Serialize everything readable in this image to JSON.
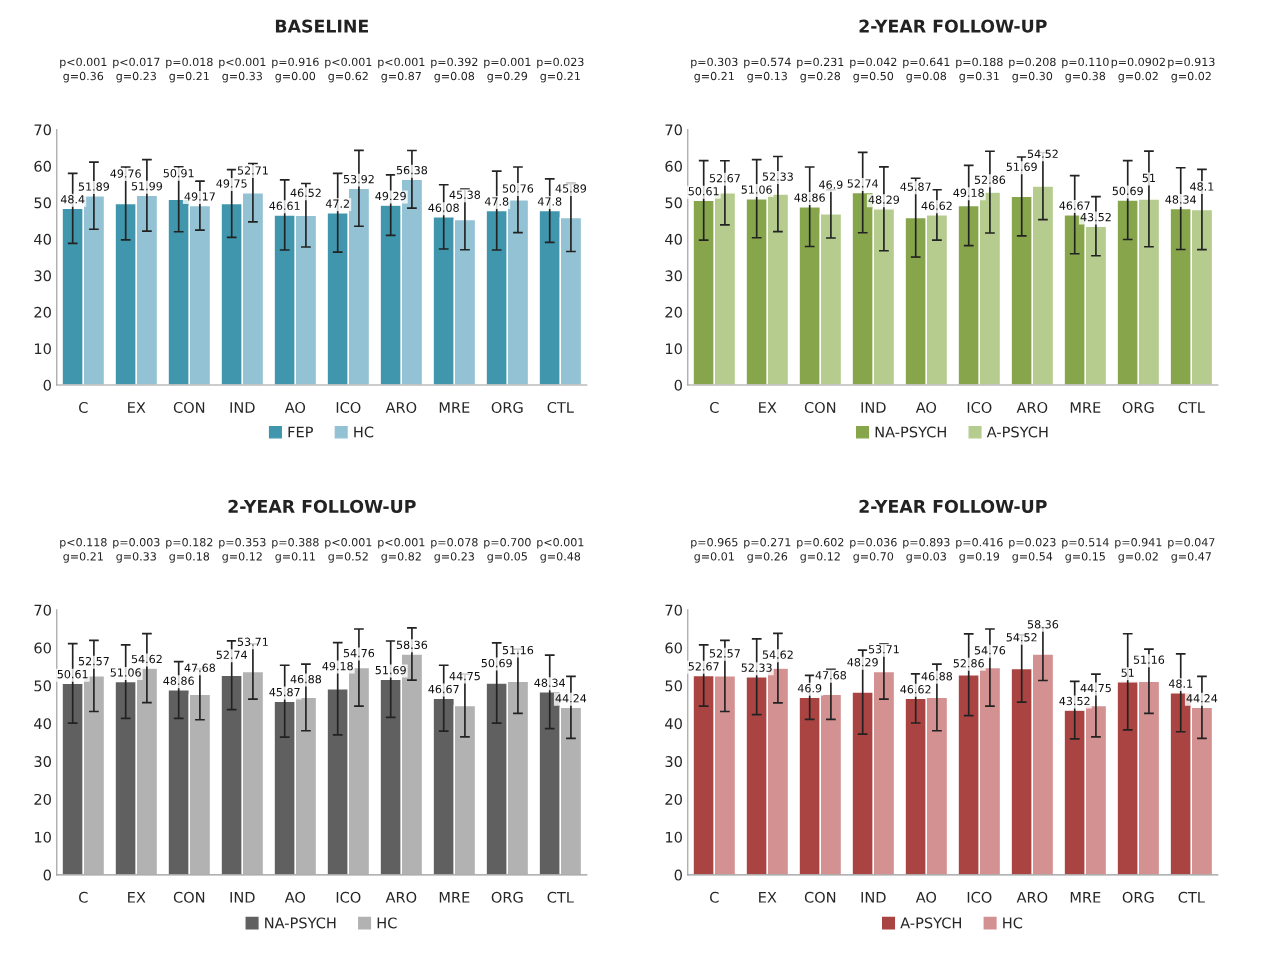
{
  "chart_data": [
    {
      "type": "bar",
      "title": "BASELINE",
      "categories": [
        "C",
        "EX",
        "CON",
        "IND",
        "AO",
        "ICO",
        "ARO",
        "MRE",
        "ORG",
        "CTL"
      ],
      "ylim": [
        0,
        70
      ],
      "yticks": [
        0,
        10,
        20,
        30,
        40,
        50,
        60,
        70
      ],
      "grid": false,
      "legend": "bottom",
      "data_labels": true,
      "series": [
        {
          "name": "FEP",
          "color": "#3f96ad",
          "values": [
            48.4,
            49.76,
            50.91,
            49.75,
            46.61,
            47.2,
            49.29,
            46.08,
            47.8,
            47.8
          ],
          "errors": [
            9.6,
            10.0,
            8.9,
            9.3,
            9.6,
            10.8,
            8.3,
            8.8,
            10.8,
            8.7
          ]
        },
        {
          "name": "HC",
          "color": "#93c2d4",
          "values": [
            51.89,
            51.99,
            49.17,
            52.71,
            46.52,
            53.92,
            56.38,
            45.38,
            50.76,
            45.89
          ],
          "errors": [
            9.2,
            9.8,
            6.7,
            8.0,
            8.7,
            10.4,
            7.9,
            8.3,
            9.0,
            9.3
          ]
        }
      ],
      "annotations": [
        "p<0.001\ng=0.36",
        "p<0.017\ng=0.23",
        "p=0.018\ng=0.21",
        "p<0.001\ng=0.33",
        "p=0.916\ng=0.00",
        "p<0.001\ng=0.62",
        "p<0.001\ng=0.87",
        "p=0.392\ng=0.08",
        "p=0.001\ng=0.29",
        "p=0.023\ng=0.21"
      ]
    },
    {
      "type": "bar",
      "title": "2-YEAR FOLLOW-UP",
      "categories": [
        "C",
        "EX",
        "CON",
        "IND",
        "AO",
        "ICO",
        "ARO",
        "MRE",
        "ORG",
        "CTL"
      ],
      "ylim": [
        0,
        70
      ],
      "yticks": [
        0,
        10,
        20,
        30,
        40,
        50,
        60,
        70
      ],
      "grid": false,
      "legend": "bottom",
      "data_labels": true,
      "series": [
        {
          "name": "NA-PSYCH",
          "color": "#87a64b",
          "values": [
            50.61,
            51.06,
            48.86,
            52.74,
            45.87,
            49.18,
            51.69,
            46.67,
            50.69,
            48.34
          ],
          "errors": [
            10.9,
            10.7,
            10.9,
            11.0,
            10.8,
            11.0,
            10.8,
            10.7,
            10.8,
            11.2
          ]
        },
        {
          "name": "A-PSYCH",
          "color": "#b5cc8e",
          "values": [
            52.67,
            52.33,
            46.9,
            48.29,
            46.62,
            52.86,
            54.52,
            43.52,
            51,
            48.1
          ],
          "errors": [
            8.8,
            10.3,
            6.6,
            11.5,
            6.9,
            11.2,
            9.2,
            8.1,
            13.1,
            11.0
          ]
        }
      ],
      "annotations": [
        "p=0.303\ng=0.21",
        "p=0.574\ng=0.13",
        "p=0.231\ng=0.28",
        "p=0.042\ng=0.50",
        "p=0.641\ng=0.08",
        "p=0.188\ng=0.31",
        "p=0.208\ng=0.30",
        "p=0.110\ng=0.38",
        "p=0.0902\ng=0.02",
        "p=0.913\ng=0.02"
      ]
    },
    {
      "type": "bar",
      "title": "2-YEAR FOLLOW-UP",
      "categories": [
        "C",
        "EX",
        "CON",
        "IND",
        "AO",
        "ICO",
        "ARO",
        "MRE",
        "ORG",
        "CTL"
      ],
      "ylim": [
        0,
        70
      ],
      "yticks": [
        0,
        10,
        20,
        30,
        40,
        50,
        60,
        70
      ],
      "grid": false,
      "legend": "bottom",
      "data_labels": true,
      "series": [
        {
          "name": "NA-PSYCH",
          "color": "#606060",
          "values": [
            50.61,
            51.06,
            48.86,
            52.74,
            45.87,
            49.18,
            51.69,
            46.67,
            50.69,
            48.34
          ],
          "errors": [
            10.5,
            9.7,
            7.5,
            9.1,
            9.5,
            12.2,
            10.1,
            8.7,
            10.6,
            9.7
          ]
        },
        {
          "name": "HC",
          "color": "#b2b2b2",
          "values": [
            52.57,
            54.62,
            47.68,
            53.71,
            46.88,
            54.76,
            58.36,
            44.75,
            51.16,
            44.24
          ],
          "errors": [
            9.4,
            9.1,
            6.7,
            7.3,
            8.8,
            10.2,
            6.9,
            8.3,
            8.5,
            8.2
          ]
        }
      ],
      "annotations": [
        "p<0.118\ng=0.21",
        "p=0.003\ng=0.33",
        "p=0.182\ng=0.18",
        "p=0.353\ng=0.12",
        "p=0.388\ng=0.11",
        "p<0.001\ng=0.52",
        "p<0.001\ng=0.82",
        "p=0.078\ng=0.23",
        "p=0.700\ng=0.05",
        "p<0.001\ng=0.48"
      ]
    },
    {
      "type": "bar",
      "title": "2-YEAR FOLLOW-UP",
      "categories": [
        "C",
        "EX",
        "CON",
        "IND",
        "AO",
        "ICO",
        "ARO",
        "MRE",
        "ORG",
        "CTL"
      ],
      "ylim": [
        0,
        70
      ],
      "yticks": [
        0,
        10,
        20,
        30,
        40,
        50,
        60,
        70
      ],
      "grid": false,
      "legend": "bottom",
      "data_labels": true,
      "series": [
        {
          "name": "A-PSYCH",
          "color": "#a94442",
          "values": [
            52.67,
            52.33,
            46.9,
            48.29,
            46.62,
            52.86,
            54.52,
            43.52,
            51,
            48.1
          ],
          "errors": [
            8.1,
            10.0,
            5.8,
            11.1,
            6.5,
            10.8,
            8.9,
            7.6,
            12.7,
            10.3
          ]
        },
        {
          "name": "HC",
          "color": "#d39191",
          "values": [
            52.57,
            54.62,
            47.68,
            53.71,
            46.88,
            54.76,
            58.36,
            44.75,
            51.16,
            44.24
          ],
          "errors": [
            9.4,
            9.2,
            6.6,
            7.3,
            8.8,
            10.2,
            7.0,
            8.3,
            8.5,
            8.2
          ]
        }
      ],
      "annotations": [
        "p=0.965\ng=0.01",
        "p=0.271\ng=0.26",
        "p=0.602\ng=0.12",
        "p=0.036\ng=0.70",
        "p=0.893\ng=0.03",
        "p=0.416\ng=0.19",
        "p=0.023\ng=0.54",
        "p=0.514\ng=0.15",
        "p=0.941\ng=0.02",
        "p=0.047\ng=0.47"
      ]
    }
  ]
}
